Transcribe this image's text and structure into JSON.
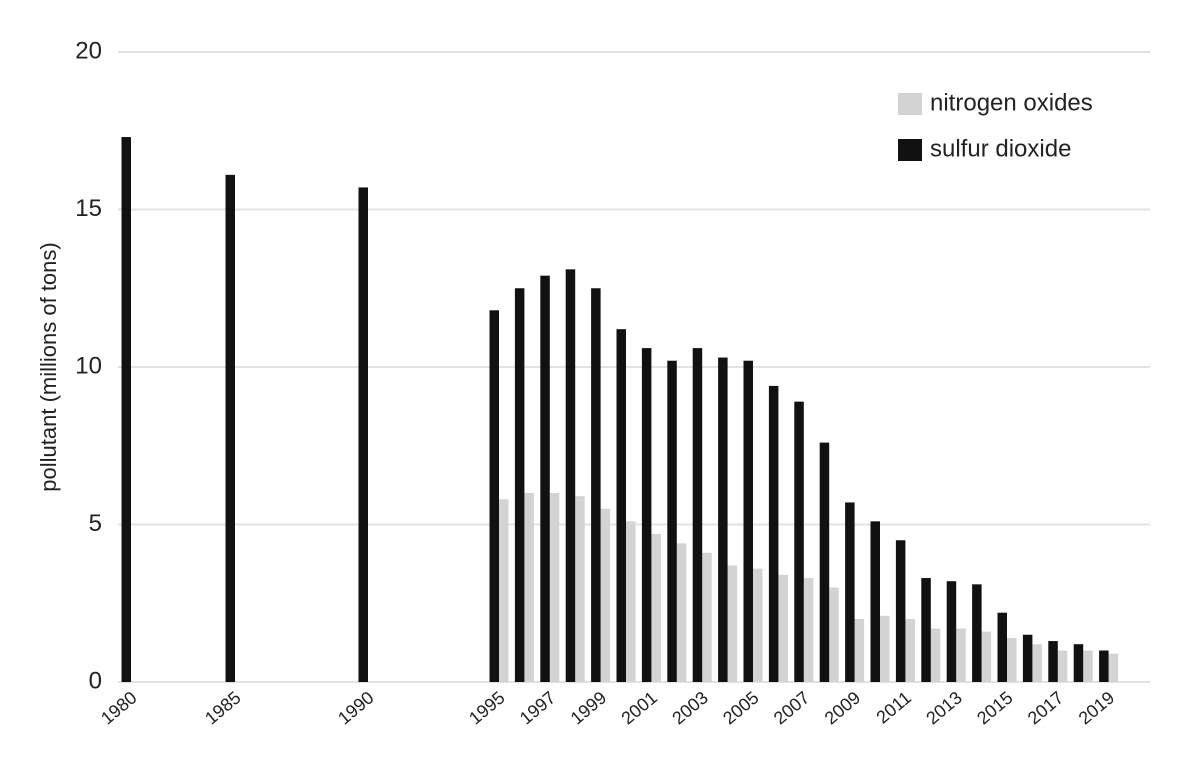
{
  "chart_data": {
    "type": "bar",
    "y_label": "pollutant (millions of tons)",
    "categories": [
      "1980",
      "1985",
      "1990",
      "1995",
      null,
      "1997",
      null,
      "1999",
      null,
      "2001",
      null,
      "2003",
      null,
      "2005",
      null,
      "2007",
      null,
      "2009",
      null,
      "2011",
      null,
      "2013",
      null,
      "2015",
      null,
      "2017",
      null,
      "2019"
    ],
    "series": [
      {
        "name": "nitrogen oxides",
        "color": "#d3d3d3",
        "values": [
          null,
          null,
          null,
          5.8,
          6.0,
          6.0,
          5.9,
          5.5,
          5.1,
          4.7,
          4.4,
          4.1,
          3.7,
          3.6,
          3.4,
          3.3,
          3.0,
          2.0,
          2.1,
          2.0,
          1.7,
          1.7,
          1.6,
          1.4,
          1.2,
          1.0,
          1.0,
          0.9
        ]
      },
      {
        "name": "sulfur dioxide",
        "color": "#111111",
        "values": [
          17.3,
          16.1,
          15.7,
          11.8,
          12.5,
          12.9,
          13.1,
          12.5,
          11.2,
          10.6,
          10.2,
          10.6,
          10.3,
          10.2,
          9.4,
          8.9,
          7.6,
          5.7,
          5.1,
          4.5,
          3.3,
          3.2,
          3.1,
          2.2,
          1.5,
          1.3,
          1.2,
          1.0
        ]
      }
    ],
    "ylim": [
      0,
      20
    ],
    "yticks": [
      0,
      5,
      10,
      15,
      20
    ],
    "grid": true,
    "legend": "top-right"
  }
}
